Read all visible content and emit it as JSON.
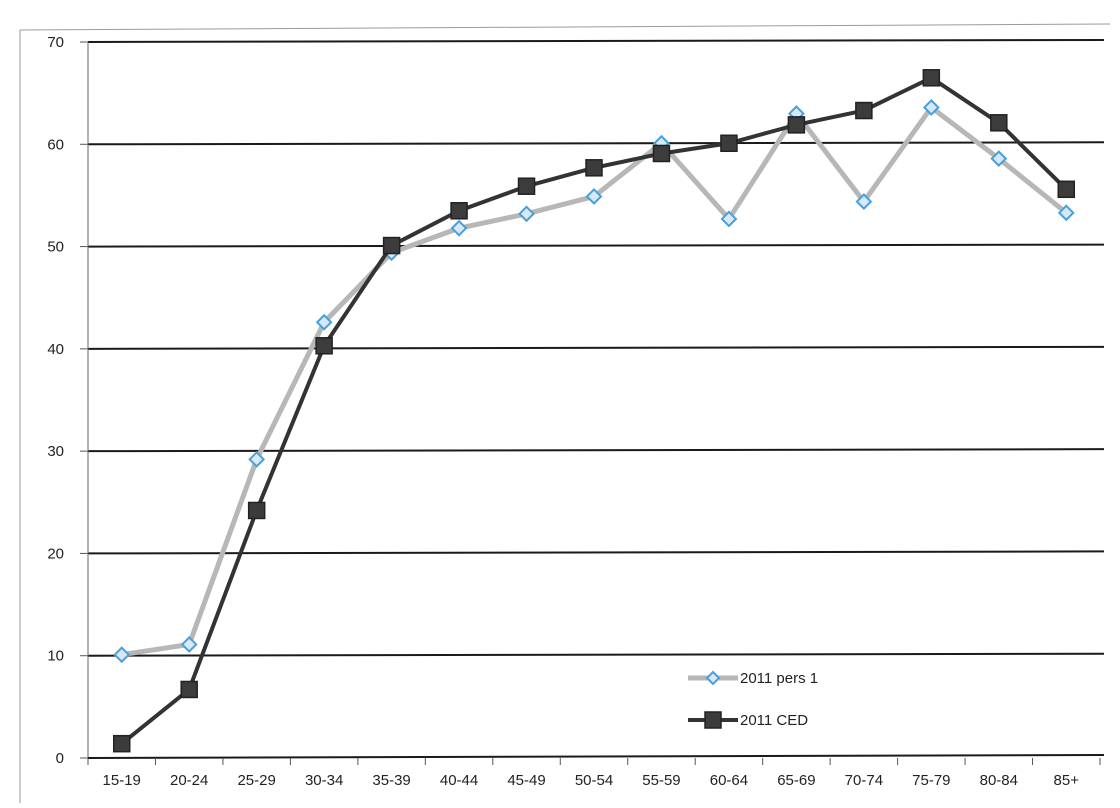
{
  "chart_data": {
    "type": "line",
    "title": "",
    "xlabel": "",
    "ylabel": "",
    "categories": [
      "15-19",
      "20-24",
      "25-29",
      "30-34",
      "35-39",
      "40-44",
      "45-49",
      "50-54",
      "55-59",
      "60-64",
      "65-69",
      "70-74",
      "75-79",
      "80-84",
      "85+"
    ],
    "ylim": [
      0,
      70
    ],
    "yticks": [
      0,
      10,
      20,
      30,
      40,
      50,
      60,
      70
    ],
    "grid": true,
    "legend_position": "bottom-right",
    "series": [
      {
        "name": "2011 pers 1",
        "values": [
          10.1,
          11.1,
          29.2,
          42.6,
          49.4,
          51.8,
          53.2,
          54.9,
          60.1,
          52.7,
          63.0,
          54.4,
          63.6,
          58.6,
          53.3
        ],
        "line_color": "#b7b7b7",
        "marker": "diamond",
        "marker_fill": "#d6e9f8",
        "marker_stroke": "#4a9fd8"
      },
      {
        "name": "2011 CED",
        "values": [
          1.4,
          6.7,
          24.2,
          40.3,
          50.1,
          53.5,
          55.9,
          57.7,
          59.1,
          60.1,
          61.9,
          63.3,
          66.5,
          62.1,
          55.6
        ],
        "line_color": "#333333",
        "marker": "square",
        "marker_fill": "#3c3c3c",
        "marker_stroke": "#222222"
      }
    ]
  }
}
